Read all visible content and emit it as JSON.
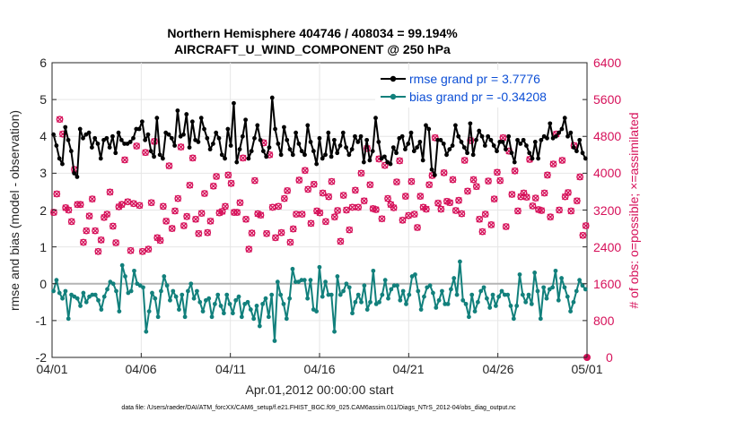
{
  "chart_data": {
    "type": "line",
    "title": "Northern Hemisphere 404746 / 408034 = 99.194%",
    "subtitle": "AIRCRAFT_U_WIND_COMPONENT @ 250 hPa",
    "xlabel": "Apr.01,2012 00:00:00 start",
    "ylabel": "rmse and bias (model - observation)",
    "ylabel_right": "# of obs: o=possible; ×=assimilated",
    "ylim": [
      -2,
      6
    ],
    "ylim_right": [
      0,
      6400
    ],
    "xlim": [
      0,
      30
    ],
    "x_tick_labels": [
      "04/01",
      "04/06",
      "04/11",
      "04/16",
      "04/21",
      "04/26",
      "05/01"
    ],
    "y_tick_labels": [
      "-2",
      "-1",
      "0",
      "1",
      "2",
      "3",
      "4",
      "5",
      "6"
    ],
    "y2_tick_labels": [
      "0",
      "800",
      "1600",
      "2400",
      "3200",
      "4000",
      "4800",
      "5600",
      "6400"
    ],
    "legend": {
      "position": "top-right",
      "entries": [
        "rmse grand pr = 3.7776",
        "bias grand pr = -0.34208"
      ]
    },
    "footer": "data file: /Users/raeder/DAI/ATM_forcXX/CAM6_setup/f.e21.FHIST_BGC.f09_025.CAM6assim.011/Diags_NTrS_2012-04/obs_diag_output.nc",
    "colors": {
      "rmse": "#000000",
      "bias": "#12807c",
      "obs": "#d6115a",
      "zero_line": "#b4b4b4",
      "legend_text": "#0d4fd6"
    },
    "series": [
      {
        "name": "rmse",
        "values": [
          4.05,
          3.75,
          3.4,
          3.25,
          4.25,
          3.9,
          3.6,
          3.0,
          2.9,
          4.2,
          3.95,
          4.05,
          4.1,
          3.7,
          3.95,
          3.8,
          3.4,
          3.9,
          3.95,
          3.7,
          4.0,
          3.55,
          4.1,
          3.9,
          3.8,
          3.8,
          3.85,
          3.95,
          4.2,
          4.2,
          4.4,
          3.9,
          4.05,
          3.6,
          3.45,
          4.5,
          3.5,
          3.4,
          4.1,
          4.05,
          3.95,
          3.75,
          4.7,
          4.0,
          4.05,
          4.6,
          3.7,
          4.4,
          3.9,
          3.85,
          4.5,
          4.2,
          3.95,
          3.65,
          3.8,
          4.1,
          3.95,
          3.5,
          3.4,
          4.2,
          3.75,
          4.9,
          3.3,
          3.65,
          4.0,
          4.45,
          3.4,
          3.6,
          3.95,
          4.3,
          3.9,
          3.6,
          3.45,
          3.7,
          5.05,
          4.2,
          3.8,
          3.5,
          4.25,
          3.9,
          3.65,
          3.5,
          4.1,
          3.8,
          3.6,
          3.5,
          4.3,
          3.85,
          3.6,
          3.25,
          3.95,
          3.4,
          3.5,
          4.1,
          3.45,
          3.9,
          3.55,
          3.75,
          4.1,
          3.7,
          3.5,
          3.65,
          4.0,
          3.85,
          4.0,
          3.3,
          3.9,
          3.35,
          3.6,
          4.5,
          3.85,
          3.4,
          3.45,
          3.3,
          3.25,
          3.7,
          3.55,
          3.95,
          4.0,
          3.65,
          3.8,
          4.1,
          3.6,
          3.7,
          3.85,
          3.35,
          4.3,
          4.2,
          3.1,
          2.95,
          3.9,
          3.9,
          3.8,
          3.5,
          3.65,
          3.75,
          4.3,
          4.0,
          3.85,
          3.7,
          3.55,
          4.35,
          3.5,
          3.9,
          4.15,
          4.0,
          3.75,
          4.0,
          3.9,
          3.75,
          3.6,
          3.85,
          3.85,
          3.65,
          4.0,
          3.55,
          3.3,
          3.9,
          3.8,
          3.9,
          3.75,
          3.55,
          3.4,
          3.85,
          3.4,
          3.9,
          4.0,
          3.95,
          4.35,
          3.95,
          4.0,
          4.1,
          4.2,
          4.5,
          4.0,
          4.1,
          3.7,
          3.6,
          3.9,
          3.55,
          3.4
        ]
      },
      {
        "name": "bias",
        "values": [
          -0.2,
          0.1,
          -0.25,
          -0.4,
          -0.2,
          -0.95,
          -0.3,
          -0.35,
          -0.4,
          -0.6,
          -0.25,
          -0.5,
          -0.35,
          -0.3,
          -0.3,
          -0.45,
          -0.7,
          -0.35,
          -0.15,
          0.05,
          0.0,
          -0.2,
          -0.75,
          0.5,
          0.2,
          -0.25,
          -0.2,
          0.35,
          0.0,
          -0.05,
          -0.1,
          -1.3,
          -0.75,
          -0.25,
          -0.4,
          -0.9,
          -0.2,
          0.2,
          -0.05,
          -0.45,
          -0.2,
          -0.35,
          -0.7,
          -0.3,
          -0.9,
          -0.2,
          0.0,
          -0.4,
          -0.2,
          -0.5,
          -0.75,
          -0.45,
          -0.4,
          -0.9,
          -0.55,
          -0.3,
          -0.6,
          -0.8,
          -0.3,
          -0.55,
          -0.8,
          -0.45,
          -0.35,
          -0.9,
          -0.55,
          -0.5,
          -0.7,
          -0.95,
          -0.6,
          -1.15,
          -0.55,
          -0.4,
          -0.9,
          -0.3,
          -1.55,
          0.05,
          -0.3,
          -0.55,
          -0.95,
          -0.4,
          0.4,
          0.05,
          0.05,
          0.1,
          0.1,
          -0.4,
          0.1,
          -0.7,
          -0.75,
          0.45,
          -0.35,
          0.05,
          -0.3,
          -0.3,
          -1.3,
          0.2,
          -0.3,
          -0.2,
          0.0,
          -0.1,
          -0.8,
          -0.5,
          -0.3,
          -0.5,
          -0.05,
          -0.7,
          -0.5,
          0.35,
          -0.55,
          -0.5,
          -0.3,
          0.1,
          -0.4,
          -0.15,
          -0.05,
          -0.05,
          -0.45,
          -0.2,
          -0.55,
          -0.3,
          0.2,
          0.25,
          -0.2,
          -0.7,
          -0.35,
          -0.1,
          -0.05,
          -0.25,
          -0.65,
          -0.45,
          -0.2,
          -0.55,
          -0.55,
          -0.15,
          0.15,
          -0.3,
          0.6,
          -0.45,
          -0.55,
          -0.9,
          -0.3,
          -0.75,
          -0.5,
          -0.2,
          -0.1,
          -0.4,
          -0.65,
          -0.3,
          -0.6,
          -0.35,
          -0.2,
          -0.3,
          -0.3,
          -0.6,
          -0.95,
          -0.6,
          0.25,
          -0.3,
          -0.5,
          -0.3,
          -0.55,
          0.3,
          -0.2,
          -0.95,
          -0.1,
          -0.4,
          -0.15,
          -0.1,
          0.35,
          -0.45,
          0.15,
          -0.1,
          -0.35,
          -0.75,
          -0.5,
          -0.2,
          0.1,
          -0.05,
          -0.15
        ]
      },
      {
        "name": "obs possible",
        "values": [
          3150,
          3550,
          5170,
          4850,
          3250,
          3200,
          2950,
          4080,
          3320,
          3320,
          2500,
          2750,
          3070,
          3440,
          2750,
          2300,
          2550,
          3040,
          3110,
          3590,
          2850,
          2490,
          3270,
          3320,
          4290,
          3380,
          2320,
          3340,
          4590,
          3300,
          2300,
          4450,
          2350,
          3360,
          4690,
          2600,
          2540,
          3280,
          2960,
          4160,
          2800,
          3180,
          3450,
          4570,
          2860,
          3060,
          3740,
          4330,
          3000,
          2690,
          3130,
          3560,
          2710,
          2960,
          3720,
          3930,
          3140,
          3170,
          3280,
          3960,
          3780,
          3150,
          3150,
          3360,
          4330,
          3000,
          2350,
          2700,
          3840,
          3120,
          3090,
          4660,
          2690,
          4400,
          3260,
          2600,
          3280,
          2710,
          3450,
          3620,
          2500,
          2790,
          3110,
          3850,
          3110,
          4060,
          3650,
          2910,
          3760,
          3180,
          3140,
          3570,
          2950,
          3490,
          3820,
          3050,
          3190,
          2520,
          3520,
          3200,
          2770,
          3260,
          3630,
          3260,
          4000,
          3400,
          4540,
          3750,
          3230,
          3210,
          4310,
          3010,
          4170,
          3450,
          3320,
          3250,
          3810,
          4270,
          2980,
          3500,
          3080,
          3820,
          3110,
          2820,
          3500,
          3260,
          3220,
          3750,
          3950,
          4770,
          3350,
          3220,
          4010,
          3390,
          3360,
          3860,
          3190,
          3410,
          3120,
          4280,
          3610,
          4710,
          3860,
          3710,
          3000,
          2730,
          3110,
          3830,
          2880,
          3440,
          4020,
          3840,
          4770,
          2840,
          4480,
          3540,
          4050,
          3180,
          3490,
          3570,
          3480,
          4300,
          3290,
          3460,
          3210,
          3190,
          3570,
          3960,
          3050,
          4200,
          4850,
          3200,
          4280,
          3490,
          3580,
          3180,
          4600,
          3400,
          3920,
          2650,
          2860
        ]
      }
    ]
  }
}
